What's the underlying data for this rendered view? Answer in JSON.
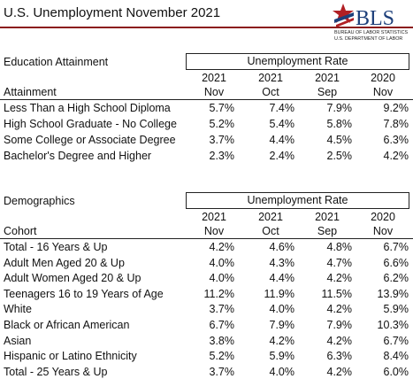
{
  "header": {
    "title": "U.S. Unemployment November 2021",
    "logo": {
      "text": "BLS",
      "line1": "BUREAU OF LABOR STATISTICS",
      "line2": "U.S. DEPARTMENT OF LABOR"
    }
  },
  "tables": [
    {
      "section": "Education Attainment",
      "group_header": "Unemployment Rate",
      "row_header": "Attainment",
      "columns": [
        [
          "2021",
          "Nov"
        ],
        [
          "2021",
          "Oct"
        ],
        [
          "2021",
          "Sep"
        ],
        [
          "2020",
          "Nov"
        ]
      ],
      "rows": [
        {
          "label": "Less Than a High School Diploma",
          "values": [
            "5.7%",
            "7.4%",
            "7.9%",
            "9.2%"
          ]
        },
        {
          "label": "High School Graduate - No College",
          "values": [
            "5.2%",
            "5.4%",
            "5.8%",
            "7.8%"
          ]
        },
        {
          "label": "Some College or Associate Degree",
          "values": [
            "3.7%",
            "4.4%",
            "4.5%",
            "6.3%"
          ]
        },
        {
          "label": "Bachelor's Degree and Higher",
          "values": [
            "2.3%",
            "2.4%",
            "2.5%",
            "4.2%"
          ]
        }
      ]
    },
    {
      "section": "Demographics",
      "group_header": "Unemployment Rate",
      "row_header": "Cohort",
      "columns": [
        [
          "2021",
          "Nov"
        ],
        [
          "2021",
          "Oct"
        ],
        [
          "2021",
          "Sep"
        ],
        [
          "2020",
          "Nov"
        ]
      ],
      "rows": [
        {
          "label": "Total - 16 Years & Up",
          "values": [
            "4.2%",
            "4.6%",
            "4.8%",
            "6.7%"
          ]
        },
        {
          "label": "Adult Men Aged 20 & Up",
          "values": [
            "4.0%",
            "4.3%",
            "4.7%",
            "6.6%"
          ]
        },
        {
          "label": "Adult Women Aged 20 & Up",
          "values": [
            "4.0%",
            "4.4%",
            "4.2%",
            "6.2%"
          ]
        },
        {
          "label": "Teenagers 16 to 19 Years of Age",
          "values": [
            "11.2%",
            "11.9%",
            "11.5%",
            "13.9%"
          ]
        },
        {
          "label": "White",
          "values": [
            "3.7%",
            "4.0%",
            "4.2%",
            "5.9%"
          ]
        },
        {
          "label": "Black or African American",
          "values": [
            "6.7%",
            "7.9%",
            "7.9%",
            "10.3%"
          ]
        },
        {
          "label": "Asian",
          "values": [
            "3.8%",
            "4.2%",
            "4.2%",
            "6.7%"
          ]
        },
        {
          "label": "Hispanic or Latino Ethnicity",
          "values": [
            "5.2%",
            "5.9%",
            "6.3%",
            "8.4%"
          ]
        },
        {
          "label": "Total - 25 Years & Up",
          "values": [
            "3.7%",
            "4.0%",
            "4.2%",
            "6.0%"
          ]
        }
      ]
    }
  ]
}
